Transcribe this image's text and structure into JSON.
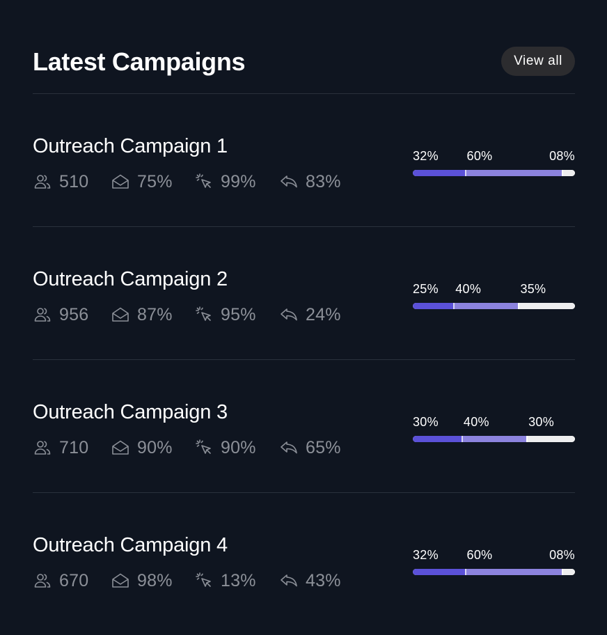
{
  "header": {
    "title": "Latest Campaigns",
    "view_all_label": "View all"
  },
  "campaigns": [
    {
      "name": "Outreach Campaign 1",
      "recipients": "510",
      "opened": "75%",
      "clicked": "99%",
      "replied": "83%",
      "segments": [
        {
          "label": "32%",
          "value": 32
        },
        {
          "label": "60%",
          "value": 60
        },
        {
          "label": "08%",
          "value": 8
        }
      ]
    },
    {
      "name": "Outreach Campaign 2",
      "recipients": "956",
      "opened": "87%",
      "clicked": "95%",
      "replied": "24%",
      "segments": [
        {
          "label": "25%",
          "value": 25
        },
        {
          "label": "40%",
          "value": 40
        },
        {
          "label": "35%",
          "value": 35
        }
      ]
    },
    {
      "name": "Outreach Campaign 3",
      "recipients": "710",
      "opened": "90%",
      "clicked": "90%",
      "replied": "65%",
      "segments": [
        {
          "label": "30%",
          "value": 30
        },
        {
          "label": "40%",
          "value": 40
        },
        {
          "label": "30%",
          "value": 30
        }
      ]
    },
    {
      "name": "Outreach Campaign 4",
      "recipients": "670",
      "opened": "98%",
      "clicked": "13%",
      "replied": "43%",
      "segments": [
        {
          "label": "32%",
          "value": 32
        },
        {
          "label": "60%",
          "value": 60
        },
        {
          "label": "08%",
          "value": 8
        }
      ]
    }
  ],
  "icons": {
    "recipients": "users-icon",
    "opened": "envelope-open-icon",
    "clicked": "cursor-click-icon",
    "replied": "reply-icon"
  },
  "colors": {
    "background": "#0f1520",
    "segment_1": "#5b51d8",
    "segment_2": "#8c83de",
    "segment_3": "#eeeeef",
    "stat_text": "#8c9098"
  }
}
